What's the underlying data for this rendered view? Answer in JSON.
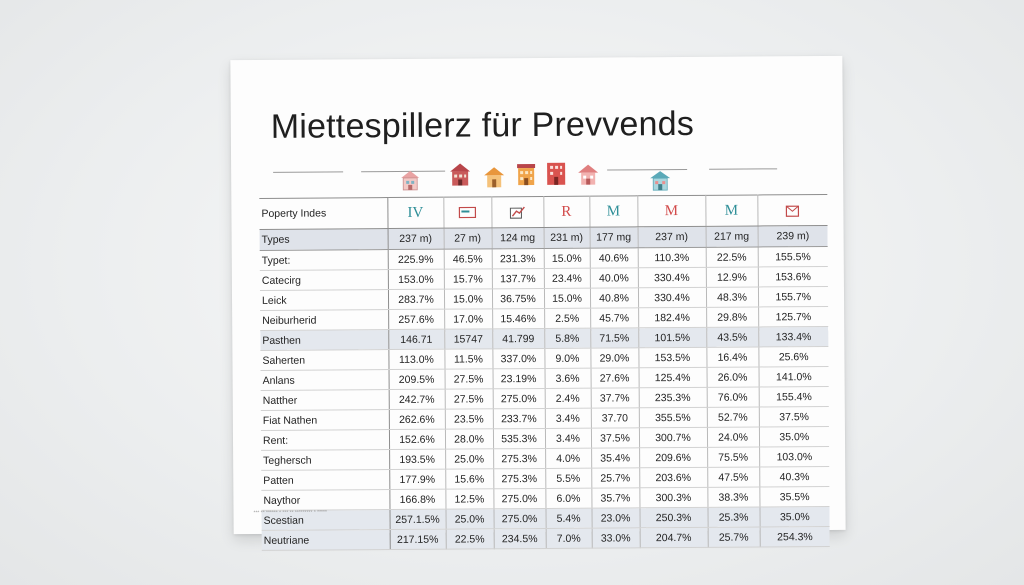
{
  "title": "Miettespillerz für Prevvends",
  "colors": {
    "paper": "#fdfdfd",
    "row_shade": "#e4e8ee",
    "house_pink": "#e98f8f",
    "house_red": "#d9534f",
    "house_orange": "#f0a44a",
    "house_teal": "#5aa9b8",
    "letter_red": "#d24a4a",
    "letter_teal": "#2f8f98"
  },
  "houses": [
    {
      "icon": "pink-house-icon",
      "color": "#e9a3a3"
    },
    {
      "icon": "red-house-icon",
      "color": "#b8454a"
    },
    {
      "icon": "orange-house-icon",
      "color": "#f0a44a"
    },
    {
      "icon": "orange-building-icon",
      "color": "#e8963c"
    },
    {
      "icon": "red-building-icon",
      "color": "#d9534f"
    },
    {
      "icon": "pink-small-house-icon",
      "color": "#e98f8f"
    },
    {
      "icon": "teal-house-icon",
      "color": "#5aa9b8"
    }
  ],
  "table": {
    "header_label": "Poperty Indes",
    "column_icons": [
      {
        "kind": "text",
        "text": "IV",
        "color": "#2f8f98",
        "icon": "iv-marker-icon"
      },
      {
        "kind": "svg",
        "icon": "card-icon",
        "color": "#c24a4a"
      },
      {
        "kind": "svg",
        "icon": "chart-arrow-icon",
        "color": "#2f8f98"
      },
      {
        "kind": "text",
        "text": "R",
        "color": "#d24a4a",
        "icon": "r-letter-icon"
      },
      {
        "kind": "text",
        "text": "M",
        "color": "#2f8f98",
        "icon": "m-letter-icon"
      },
      {
        "kind": "text",
        "text": "M",
        "color": "#d24a4a",
        "icon": "m-letter-red-icon"
      },
      {
        "kind": "text",
        "text": "M",
        "color": "#2f8f98",
        "icon": "m-letter-teal-icon"
      },
      {
        "kind": "svg",
        "icon": "mail-box-icon",
        "color": "#c24a4a"
      }
    ],
    "units_row": {
      "label": "Types",
      "values": [
        "237 m)",
        "27 m)",
        "124 mg",
        "231 m)",
        "177 mg",
        "237 m)",
        "217 mg",
        "239 m)"
      ]
    },
    "rows": [
      {
        "label": "Typet:",
        "values": [
          "225.9%",
          "46.5%",
          "231.3%",
          "15.0%",
          "40.6%",
          "110.3%",
          "22.5%",
          "155.5%"
        ],
        "shaded": false
      },
      {
        "label": "Catecirg",
        "values": [
          "153.0%",
          "15.7%",
          "137.7%",
          "23.4%",
          "40.0%",
          "330.4%",
          "12.9%",
          "153.6%"
        ],
        "shaded": false
      },
      {
        "label": "Leick",
        "values": [
          "283.7%",
          "15.0%",
          "36.75%",
          "15.0%",
          "40.8%",
          "330.4%",
          "48.3%",
          "155.7%"
        ],
        "shaded": false
      },
      {
        "label": "Neiburherid",
        "values": [
          "257.6%",
          "17.0%",
          "15.46%",
          "2.5%",
          "45.7%",
          "182.4%",
          "29.8%",
          "125.7%"
        ],
        "shaded": false
      },
      {
        "label": "Pasthen",
        "values": [
          "146.71",
          "15747",
          "41.799",
          "5.8%",
          "71.5%",
          "101.5%",
          "43.5%",
          "133.4%"
        ],
        "shaded": true
      },
      {
        "label": "Saherten",
        "values": [
          "113.0%",
          "11.5%",
          "337.0%",
          "9.0%",
          "29.0%",
          "153.5%",
          "16.4%",
          "25.6%"
        ],
        "shaded": false
      },
      {
        "label": "Anlans",
        "values": [
          "209.5%",
          "27.5%",
          "23.19%",
          "3.6%",
          "27.6%",
          "125.4%",
          "26.0%",
          "141.0%"
        ],
        "shaded": false
      },
      {
        "label": "Natther",
        "values": [
          "242.7%",
          "27.5%",
          "275.0%",
          "2.4%",
          "37.7%",
          "235.3%",
          "76.0%",
          "155.4%"
        ],
        "shaded": false
      },
      {
        "label": "Fiat Nathen",
        "values": [
          "262.6%",
          "23.5%",
          "233.7%",
          "3.4%",
          "37.70",
          "355.5%",
          "52.7%",
          "37.5%"
        ],
        "shaded": false
      },
      {
        "label": "Rent:",
        "values": [
          "152.6%",
          "28.0%",
          "535.3%",
          "3.4%",
          "37.5%",
          "300.7%",
          "24.0%",
          "35.0%"
        ],
        "shaded": false
      },
      {
        "label": "Teghersch",
        "values": [
          "193.5%",
          "25.0%",
          "275.3%",
          "4.0%",
          "35.4%",
          "209.6%",
          "75.5%",
          "103.0%"
        ],
        "shaded": false
      },
      {
        "label": "Patten",
        "values": [
          "177.9%",
          "15.6%",
          "275.3%",
          "5.5%",
          "25.7%",
          "203.6%",
          "47.5%",
          "40.3%"
        ],
        "shaded": false
      },
      {
        "label": "Naythor",
        "values": [
          "166.8%",
          "12.5%",
          "275.0%",
          "6.0%",
          "35.7%",
          "300.3%",
          "38.3%",
          "35.5%"
        ],
        "shaded": false
      },
      {
        "label": "Scestian",
        "values": [
          "257.1.5%",
          "25.0%",
          "275.0%",
          "5.4%",
          "23.0%",
          "250.3%",
          "25.3%",
          "35.0%"
        ],
        "shaded": true
      },
      {
        "label": "Neutriane",
        "values": [
          "217.15%",
          "22.5%",
          "234.5%",
          "7.0%",
          "33.0%",
          "204.7%",
          "25.7%",
          "254.3%"
        ],
        "shaded": true
      }
    ]
  },
  "footnote": "*** ** ****** * *** ** ********* * *****"
}
